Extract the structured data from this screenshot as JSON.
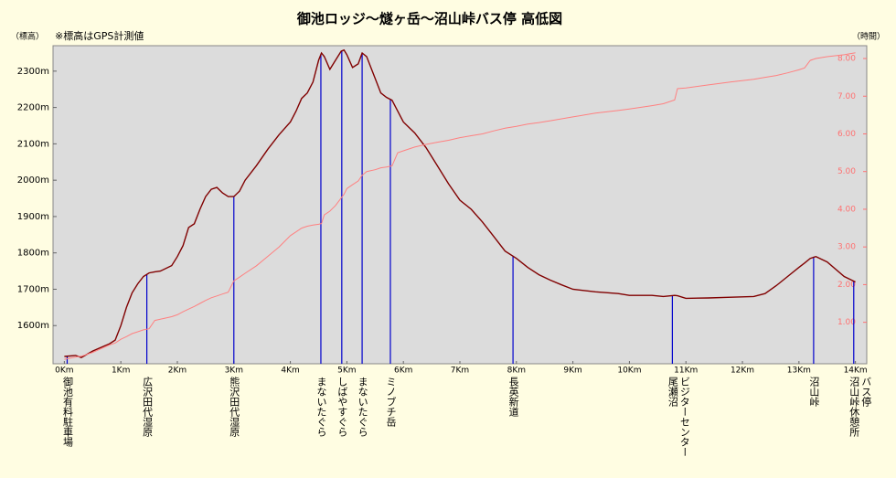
{
  "chart_data": {
    "type": "line",
    "title": "御池ロッジ～燧ヶ岳～沼山峠バス停 高低図",
    "y_label": "（標高）",
    "note": "※標高はGPS計測値",
    "y2_label": "（時間）",
    "x": [
      0,
      0.2,
      0.3,
      0.5,
      0.8,
      0.9,
      1.0,
      1.1,
      1.2,
      1.3,
      1.4,
      1.5,
      1.6,
      1.7,
      1.9,
      2.0,
      2.1,
      2.2,
      2.3,
      2.4,
      2.5,
      2.6,
      2.7,
      2.8,
      2.9,
      3.0,
      3.1,
      3.2,
      3.4,
      3.6,
      3.8,
      4.0,
      4.1,
      4.2,
      4.3,
      4.4,
      4.5,
      4.55,
      4.6,
      4.7,
      4.8,
      4.9,
      4.95,
      5.0,
      5.1,
      5.2,
      5.27,
      5.35,
      5.5,
      5.6,
      5.7,
      5.8,
      5.9,
      6.0,
      6.2,
      6.4,
      6.6,
      6.8,
      7.0,
      7.2,
      7.4,
      7.6,
      7.8,
      8.0,
      8.2,
      8.4,
      8.6,
      8.8,
      9.0,
      9.4,
      9.8,
      10.0,
      10.4,
      10.6,
      10.8,
      10.85,
      11.0,
      11.4,
      11.8,
      12.2,
      12.4,
      12.6,
      12.8,
      13.0,
      13.1,
      13.2,
      13.3,
      13.5,
      13.8,
      14.0
    ],
    "series": [
      {
        "name": "標高",
        "color": "#800000",
        "axis": "y",
        "values": [
          1515,
          1518,
          1512,
          1530,
          1550,
          1560,
          1600,
          1650,
          1690,
          1715,
          1735,
          1745,
          1748,
          1750,
          1765,
          1790,
          1820,
          1870,
          1880,
          1920,
          1955,
          1975,
          1980,
          1965,
          1955,
          1955,
          1970,
          2000,
          2040,
          2085,
          2125,
          2160,
          2190,
          2225,
          2240,
          2270,
          2330,
          2350,
          2340,
          2305,
          2330,
          2355,
          2358,
          2345,
          2310,
          2320,
          2350,
          2340,
          2280,
          2240,
          2228,
          2220,
          2190,
          2160,
          2130,
          2090,
          2040,
          1990,
          1945,
          1920,
          1885,
          1845,
          1805,
          1785,
          1760,
          1740,
          1725,
          1712,
          1700,
          1693,
          1688,
          1683,
          1683,
          1680,
          1683,
          1682,
          1675,
          1676,
          1678,
          1680,
          1688,
          1710,
          1735,
          1760,
          1772,
          1785,
          1790,
          1775,
          1735,
          1720
        ]
      },
      {
        "name": "時間",
        "color": "#ff8080",
        "axis": "y2",
        "values": [
          0.02,
          0.08,
          0.1,
          0.2,
          0.4,
          0.45,
          0.55,
          0.62,
          0.7,
          0.75,
          0.8,
          0.83,
          1.05,
          1.08,
          1.15,
          1.2,
          1.28,
          1.35,
          1.42,
          1.5,
          1.58,
          1.65,
          1.7,
          1.75,
          1.8,
          2.1,
          2.2,
          2.3,
          2.5,
          2.75,
          3.0,
          3.3,
          3.4,
          3.5,
          3.55,
          3.58,
          3.6,
          3.62,
          3.85,
          3.95,
          4.1,
          4.3,
          4.4,
          4.55,
          4.65,
          4.75,
          4.9,
          5.0,
          5.05,
          5.1,
          5.12,
          5.15,
          5.5,
          5.55,
          5.65,
          5.72,
          5.78,
          5.83,
          5.9,
          5.95,
          6.0,
          6.08,
          6.15,
          6.2,
          6.26,
          6.3,
          6.35,
          6.4,
          6.45,
          6.55,
          6.62,
          6.66,
          6.75,
          6.8,
          6.9,
          7.2,
          7.22,
          7.3,
          7.38,
          7.45,
          7.5,
          7.55,
          7.62,
          7.7,
          7.75,
          7.95,
          8.0,
          8.05,
          8.1,
          8.15
        ]
      }
    ],
    "xlim": [
      -0.2,
      14.2
    ],
    "ylim": [
      1495,
      2370
    ],
    "y2lim": [
      -0.1,
      8.34
    ],
    "xticks": [
      {
        "value": 0,
        "label": "0Km"
      },
      {
        "value": 1,
        "label": "1Km"
      },
      {
        "value": 2,
        "label": "2Km"
      },
      {
        "value": 3,
        "label": "3Km"
      },
      {
        "value": 4,
        "label": "4Km"
      },
      {
        "value": 5,
        "label": "5Km"
      },
      {
        "value": 6,
        "label": "6Km"
      },
      {
        "value": 7,
        "label": "7Km"
      },
      {
        "value": 8,
        "label": "8Km"
      },
      {
        "value": 9,
        "label": "9Km"
      },
      {
        "value": 10,
        "label": "10Km"
      },
      {
        "value": 11,
        "label": "11Km"
      },
      {
        "value": 12,
        "label": "12Km"
      },
      {
        "value": 13,
        "label": "13Km"
      },
      {
        "value": 14,
        "label": "14Km"
      }
    ],
    "yticks": [
      {
        "value": 1600,
        "label": "1600m"
      },
      {
        "value": 1700,
        "label": "1700m"
      },
      {
        "value": 1800,
        "label": "1800m"
      },
      {
        "value": 1900,
        "label": "1900m"
      },
      {
        "value": 2000,
        "label": "2000m"
      },
      {
        "value": 2100,
        "label": "2100m"
      },
      {
        "value": 2200,
        "label": "2200m"
      },
      {
        "value": 2300,
        "label": "2300m"
      }
    ],
    "y2ticks": [
      {
        "value": 1,
        "label": "1.00"
      },
      {
        "value": 2,
        "label": "2.00"
      },
      {
        "value": 3,
        "label": "3.00"
      },
      {
        "value": 4,
        "label": "4.00"
      },
      {
        "value": 5,
        "label": "5.00"
      },
      {
        "value": 6,
        "label": "6.00"
      },
      {
        "value": 7,
        "label": "7.00"
      },
      {
        "value": 8,
        "label": "8.00"
      }
    ],
    "landmarks": [
      {
        "x": 0.05,
        "label": [
          "御池有料駐車場"
        ]
      },
      {
        "x": 1.46,
        "label": [
          "広沢田代湿原"
        ]
      },
      {
        "x": 3.0,
        "label": [
          "熊沢田代湿原"
        ]
      },
      {
        "x": 4.54,
        "label": [
          "まないたぐら"
        ]
      },
      {
        "x": 4.91,
        "label": [
          "しばやすぐら"
        ]
      },
      {
        "x": 5.27,
        "label": [
          "まないたぐら"
        ]
      },
      {
        "x": 5.77,
        "label": [
          "ミノブチ岳"
        ]
      },
      {
        "x": 7.94,
        "label": [
          "長英新道"
        ]
      },
      {
        "x": 10.76,
        "label": [
          "ビジターセンター",
          "尾瀬沼"
        ]
      },
      {
        "x": 13.26,
        "label": [
          "沼山峠"
        ]
      },
      {
        "x": 13.97,
        "label": [
          "バス停",
          "沼山峠休憩所"
        ]
      }
    ],
    "landmark_color": "#0000cc",
    "plot_color": "#dcdcdc",
    "y2_color": "#ff7070"
  }
}
